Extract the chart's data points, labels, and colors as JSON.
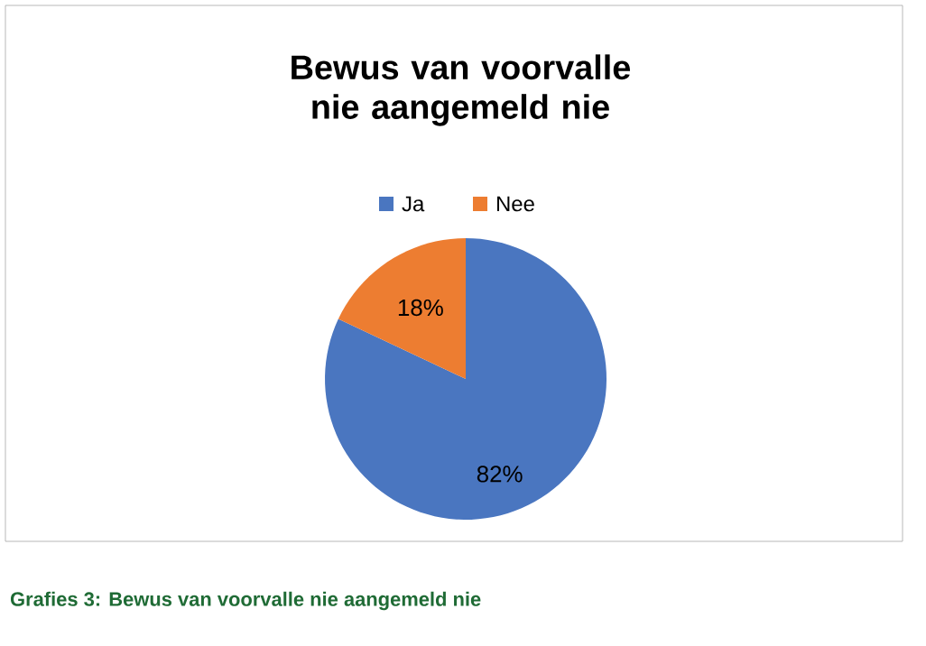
{
  "chart_data": {
    "type": "pie",
    "title": "Bewus van voorvalle nie aangemeld nie",
    "categories": [
      "Ja",
      "Nee"
    ],
    "values": [
      82,
      18
    ],
    "colors": [
      "#4a76c0",
      "#ed7d31"
    ],
    "value_labels": [
      "82%",
      "18%"
    ],
    "legend": "top",
    "annotations": [
      "Grafies 3: Bewus van voorvalle nie aangemeld nie"
    ]
  }
}
